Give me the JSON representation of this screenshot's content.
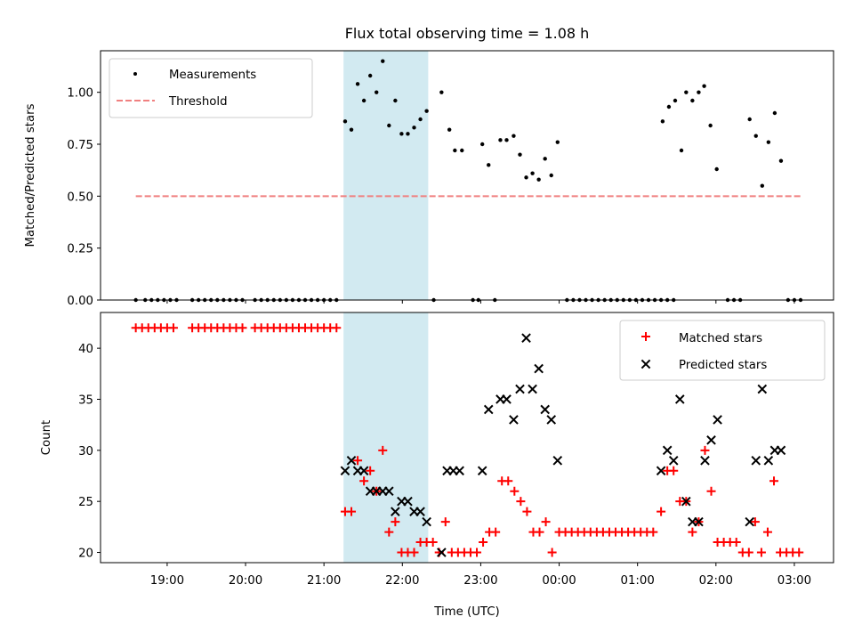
{
  "chart_data": [
    {
      "type": "scatter",
      "panel": "top",
      "title": "Flux total observing time = 1.08 h",
      "xlabel": "",
      "ylabel": "Matched/Predicted stars",
      "xlim": [
        18.15,
        27.5
      ],
      "ylim": [
        0.0,
        1.2
      ],
      "yticks": [
        0.0,
        0.25,
        0.5,
        0.75,
        1.0
      ],
      "ytick_labels": [
        "0.00",
        "0.25",
        "0.50",
        "0.75",
        "1.00"
      ],
      "legend_position": "upper-left",
      "shaded_span": [
        21.25,
        22.33
      ],
      "series": [
        {
          "name": "Measurements",
          "marker": "dot",
          "color": "#000000",
          "points": [
            [
              18.6,
              0
            ],
            [
              18.72,
              0
            ],
            [
              18.8,
              0
            ],
            [
              18.88,
              0
            ],
            [
              18.96,
              0
            ],
            [
              19.04,
              0
            ],
            [
              19.12,
              0
            ],
            [
              19.32,
              0
            ],
            [
              19.4,
              0
            ],
            [
              19.48,
              0
            ],
            [
              19.56,
              0
            ],
            [
              19.64,
              0
            ],
            [
              19.72,
              0
            ],
            [
              19.8,
              0
            ],
            [
              19.88,
              0
            ],
            [
              19.96,
              0
            ],
            [
              20.12,
              0
            ],
            [
              20.2,
              0
            ],
            [
              20.28,
              0
            ],
            [
              20.36,
              0
            ],
            [
              20.44,
              0
            ],
            [
              20.52,
              0
            ],
            [
              20.6,
              0
            ],
            [
              20.68,
              0
            ],
            [
              20.76,
              0
            ],
            [
              20.84,
              0
            ],
            [
              20.92,
              0
            ],
            [
              21.0,
              0
            ],
            [
              21.08,
              0
            ],
            [
              21.16,
              0
            ],
            [
              21.27,
              0.86
            ],
            [
              21.35,
              0.82
            ],
            [
              21.43,
              1.04
            ],
            [
              21.51,
              0.96
            ],
            [
              21.59,
              1.08
            ],
            [
              21.67,
              1.0
            ],
            [
              21.75,
              1.15
            ],
            [
              21.83,
              0.84
            ],
            [
              21.91,
              0.96
            ],
            [
              21.99,
              0.8
            ],
            [
              22.07,
              0.8
            ],
            [
              22.15,
              0.83
            ],
            [
              22.23,
              0.87
            ],
            [
              22.31,
              0.91
            ],
            [
              22.4,
              0
            ],
            [
              22.5,
              1.0
            ],
            [
              22.6,
              0.82
            ],
            [
              22.67,
              0.72
            ],
            [
              22.76,
              0.72
            ],
            [
              22.9,
              0
            ],
            [
              22.97,
              0
            ],
            [
              23.02,
              0.75
            ],
            [
              23.1,
              0.65
            ],
            [
              23.18,
              0
            ],
            [
              23.25,
              0.77
            ],
            [
              23.33,
              0.77
            ],
            [
              23.42,
              0.79
            ],
            [
              23.5,
              0.7
            ],
            [
              23.58,
              0.59
            ],
            [
              23.66,
              0.61
            ],
            [
              23.74,
              0.58
            ],
            [
              23.82,
              0.68
            ],
            [
              23.9,
              0.6
            ],
            [
              23.98,
              0.76
            ],
            [
              24.1,
              0
            ],
            [
              24.18,
              0
            ],
            [
              24.26,
              0
            ],
            [
              24.34,
              0
            ],
            [
              24.42,
              0
            ],
            [
              24.5,
              0
            ],
            [
              24.58,
              0
            ],
            [
              24.66,
              0
            ],
            [
              24.74,
              0
            ],
            [
              24.82,
              0
            ],
            [
              24.9,
              0
            ],
            [
              24.98,
              0
            ],
            [
              25.06,
              0
            ],
            [
              25.14,
              0
            ],
            [
              25.22,
              0
            ],
            [
              25.3,
              0
            ],
            [
              25.38,
              0
            ],
            [
              25.46,
              0
            ],
            [
              25.32,
              0.86
            ],
            [
              25.4,
              0.93
            ],
            [
              25.48,
              0.96
            ],
            [
              25.56,
              0.72
            ],
            [
              25.62,
              1.0
            ],
            [
              25.7,
              0.96
            ],
            [
              25.78,
              1.0
            ],
            [
              25.85,
              1.03
            ],
            [
              25.93,
              0.84
            ],
            [
              26.01,
              0.63
            ],
            [
              26.15,
              0
            ],
            [
              26.23,
              0
            ],
            [
              26.31,
              0
            ],
            [
              26.43,
              0.87
            ],
            [
              26.51,
              0.79
            ],
            [
              26.59,
              0.55
            ],
            [
              26.67,
              0.76
            ],
            [
              26.75,
              0.9
            ],
            [
              26.83,
              0.67
            ],
            [
              26.92,
              0
            ],
            [
              27.0,
              0
            ],
            [
              27.08,
              0
            ]
          ]
        },
        {
          "name": "Threshold",
          "line": "dashed",
          "color": "#f08080",
          "x": [
            18.6,
            27.1
          ],
          "y": [
            0.5,
            0.5
          ]
        }
      ]
    },
    {
      "type": "scatter",
      "panel": "bottom",
      "xlabel": "Time (UTC)",
      "ylabel": "Count",
      "xlim": [
        18.15,
        27.5
      ],
      "ylim": [
        19.0,
        43.5
      ],
      "yticks": [
        20,
        25,
        30,
        35,
        40
      ],
      "ytick_labels": [
        "20",
        "25",
        "30",
        "35",
        "40"
      ],
      "xticks": [
        19,
        20,
        21,
        22,
        23,
        24,
        25,
        26,
        27
      ],
      "xtick_labels": [
        "19:00",
        "20:00",
        "21:00",
        "22:00",
        "23:00",
        "00:00",
        "01:00",
        "02:00",
        "03:00"
      ],
      "legend_position": "upper-right",
      "shaded_span": [
        21.25,
        22.33
      ],
      "series": [
        {
          "name": "Matched stars",
          "marker": "plus",
          "color": "#ff0000",
          "points": [
            [
              18.6,
              42
            ],
            [
              18.68,
              42
            ],
            [
              18.76,
              42
            ],
            [
              18.84,
              42
            ],
            [
              18.92,
              42
            ],
            [
              19.0,
              42
            ],
            [
              19.08,
              42
            ],
            [
              19.32,
              42
            ],
            [
              19.4,
              42
            ],
            [
              19.48,
              42
            ],
            [
              19.56,
              42
            ],
            [
              19.64,
              42
            ],
            [
              19.72,
              42
            ],
            [
              19.8,
              42
            ],
            [
              19.88,
              42
            ],
            [
              19.96,
              42
            ],
            [
              20.12,
              42
            ],
            [
              20.2,
              42
            ],
            [
              20.28,
              42
            ],
            [
              20.36,
              42
            ],
            [
              20.44,
              42
            ],
            [
              20.52,
              42
            ],
            [
              20.6,
              42
            ],
            [
              20.68,
              42
            ],
            [
              20.76,
              42
            ],
            [
              20.84,
              42
            ],
            [
              20.92,
              42
            ],
            [
              21.0,
              42
            ],
            [
              21.08,
              42
            ],
            [
              21.16,
              42
            ],
            [
              21.27,
              24
            ],
            [
              21.35,
              24
            ],
            [
              21.43,
              29
            ],
            [
              21.51,
              27
            ],
            [
              21.59,
              28
            ],
            [
              21.67,
              26
            ],
            [
              21.75,
              30
            ],
            [
              21.83,
              22
            ],
            [
              21.91,
              23
            ],
            [
              21.99,
              20
            ],
            [
              22.07,
              20
            ],
            [
              22.15,
              20
            ],
            [
              22.23,
              21
            ],
            [
              22.31,
              21
            ],
            [
              22.39,
              21
            ],
            [
              22.47,
              20
            ],
            [
              22.55,
              23
            ],
            [
              22.63,
              20
            ],
            [
              22.71,
              20
            ],
            [
              22.79,
              20
            ],
            [
              22.87,
              20
            ],
            [
              22.95,
              20
            ],
            [
              23.03,
              21
            ],
            [
              23.11,
              22
            ],
            [
              23.19,
              22
            ],
            [
              23.27,
              27
            ],
            [
              23.35,
              27
            ],
            [
              23.43,
              26
            ],
            [
              23.51,
              25
            ],
            [
              23.59,
              24
            ],
            [
              23.67,
              22
            ],
            [
              23.75,
              22
            ],
            [
              23.83,
              23
            ],
            [
              23.91,
              20
            ],
            [
              24.0,
              22
            ],
            [
              24.08,
              22
            ],
            [
              24.16,
              22
            ],
            [
              24.24,
              22
            ],
            [
              24.32,
              22
            ],
            [
              24.4,
              22
            ],
            [
              24.48,
              22
            ],
            [
              24.56,
              22
            ],
            [
              24.64,
              22
            ],
            [
              24.72,
              22
            ],
            [
              24.8,
              22
            ],
            [
              24.88,
              22
            ],
            [
              24.96,
              22
            ],
            [
              25.04,
              22
            ],
            [
              25.12,
              22
            ],
            [
              25.2,
              22
            ],
            [
              25.3,
              24
            ],
            [
              25.38,
              28
            ],
            [
              25.46,
              28
            ],
            [
              25.54,
              25
            ],
            [
              25.62,
              25
            ],
            [
              25.7,
              22
            ],
            [
              25.78,
              23
            ],
            [
              25.86,
              30
            ],
            [
              25.94,
              26
            ],
            [
              26.02,
              21
            ],
            [
              26.1,
              21
            ],
            [
              26.18,
              21
            ],
            [
              26.26,
              21
            ],
            [
              26.34,
              20
            ],
            [
              26.42,
              20
            ],
            [
              26.5,
              23
            ],
            [
              26.58,
              20
            ],
            [
              26.66,
              22
            ],
            [
              26.74,
              27
            ],
            [
              26.82,
              20
            ],
            [
              26.9,
              20
            ],
            [
              26.98,
              20
            ],
            [
              27.06,
              20
            ]
          ]
        },
        {
          "name": "Predicted stars",
          "marker": "x",
          "color": "#000000",
          "points": [
            [
              21.27,
              28
            ],
            [
              21.35,
              29
            ],
            [
              21.43,
              28
            ],
            [
              21.51,
              28
            ],
            [
              21.59,
              26
            ],
            [
              21.67,
              26
            ],
            [
              21.75,
              26
            ],
            [
              21.83,
              26
            ],
            [
              21.91,
              24
            ],
            [
              21.99,
              25
            ],
            [
              22.07,
              25
            ],
            [
              22.15,
              24
            ],
            [
              22.23,
              24
            ],
            [
              22.31,
              23
            ],
            [
              22.5,
              20
            ],
            [
              22.57,
              28
            ],
            [
              22.65,
              28
            ],
            [
              22.73,
              28
            ],
            [
              23.02,
              28
            ],
            [
              23.1,
              34
            ],
            [
              23.25,
              35
            ],
            [
              23.33,
              35
            ],
            [
              23.42,
              33
            ],
            [
              23.5,
              36
            ],
            [
              23.58,
              41
            ],
            [
              23.66,
              36
            ],
            [
              23.74,
              38
            ],
            [
              23.82,
              34
            ],
            [
              23.9,
              33
            ],
            [
              23.98,
              29
            ],
            [
              25.3,
              28
            ],
            [
              25.38,
              30
            ],
            [
              25.46,
              29
            ],
            [
              25.54,
              35
            ],
            [
              25.62,
              25
            ],
            [
              25.7,
              23
            ],
            [
              25.78,
              23
            ],
            [
              25.86,
              29
            ],
            [
              25.94,
              31
            ],
            [
              26.02,
              33
            ],
            [
              26.43,
              23
            ],
            [
              26.51,
              29
            ],
            [
              26.59,
              36
            ],
            [
              26.67,
              29
            ],
            [
              26.75,
              30
            ],
            [
              26.83,
              30
            ]
          ]
        }
      ]
    }
  ]
}
